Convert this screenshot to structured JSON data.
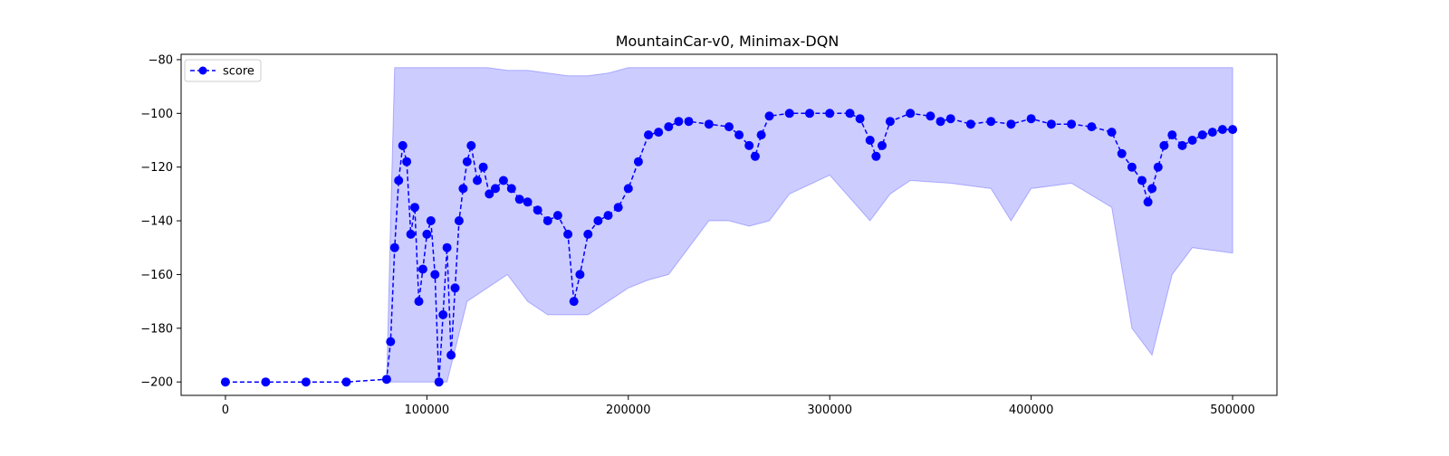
{
  "chart_data": {
    "type": "line",
    "title": "MountainCar-v0, Minimax-DQN",
    "xlabel": "",
    "ylabel": "",
    "xlim": [
      -22000,
      522000
    ],
    "ylim": [
      -205,
      -78
    ],
    "xticks": [
      {
        "value": 0,
        "label": "0"
      },
      {
        "value": 100000,
        "label": "100000"
      },
      {
        "value": 200000,
        "label": "200000"
      },
      {
        "value": 300000,
        "label": "300000"
      },
      {
        "value": 400000,
        "label": "400000"
      },
      {
        "value": 500000,
        "label": "500000"
      }
    ],
    "yticks": [
      {
        "value": -80,
        "label": "−80"
      },
      {
        "value": -100,
        "label": "−100"
      },
      {
        "value": -120,
        "label": "−120"
      },
      {
        "value": -140,
        "label": "−140"
      },
      {
        "value": -160,
        "label": "−160"
      },
      {
        "value": -180,
        "label": "−180"
      },
      {
        "value": -200,
        "label": "−200"
      }
    ],
    "legend": {
      "position": "top-left",
      "entries": [
        {
          "label": "score",
          "color": "#0000ff",
          "marker": "circle",
          "linestyle": "dashed"
        }
      ]
    },
    "grid": false,
    "series": [
      {
        "name": "score",
        "color": "#0000ff",
        "marker": "circle",
        "linestyle": "dashed",
        "x": [
          0,
          20000,
          40000,
          60000,
          80000,
          82000,
          84000,
          86000,
          88000,
          90000,
          92000,
          94000,
          96000,
          98000,
          100000,
          102000,
          104000,
          106000,
          108000,
          110000,
          112000,
          114000,
          116000,
          118000,
          120000,
          122000,
          125000,
          128000,
          131000,
          134000,
          138000,
          142000,
          146000,
          150000,
          155000,
          160000,
          165000,
          170000,
          173000,
          176000,
          180000,
          185000,
          190000,
          195000,
          200000,
          205000,
          210000,
          215000,
          220000,
          225000,
          230000,
          240000,
          250000,
          255000,
          260000,
          263000,
          266000,
          270000,
          280000,
          290000,
          300000,
          310000,
          315000,
          320000,
          323000,
          326000,
          330000,
          340000,
          350000,
          355000,
          360000,
          370000,
          380000,
          390000,
          400000,
          410000,
          420000,
          430000,
          440000,
          445000,
          450000,
          455000,
          458000,
          460000,
          463000,
          466000,
          470000,
          475000,
          480000,
          485000,
          490000,
          495000,
          500000
        ],
        "y": [
          -200,
          -200,
          -200,
          -200,
          -199,
          -185,
          -150,
          -125,
          -112,
          -118,
          -145,
          -135,
          -170,
          -158,
          -145,
          -140,
          -160,
          -200,
          -175,
          -150,
          -190,
          -165,
          -140,
          -128,
          -118,
          -112,
          -125,
          -120,
          -130,
          -128,
          -125,
          -128,
          -132,
          -133,
          -136,
          -140,
          -138,
          -145,
          -170,
          -160,
          -145,
          -140,
          -138,
          -135,
          -128,
          -118,
          -108,
          -107,
          -105,
          -103,
          -103,
          -104,
          -105,
          -108,
          -112,
          -116,
          -108,
          -101,
          -100,
          -100,
          -100,
          -100,
          -102,
          -110,
          -116,
          -112,
          -103,
          -100,
          -101,
          -103,
          -102,
          -104,
          -103,
          -104,
          -102,
          -104,
          -104,
          -105,
          -107,
          -115,
          -120,
          -125,
          -133,
          -128,
          -120,
          -112,
          -108,
          -112,
          -110,
          -108,
          -107,
          -106,
          -106
        ]
      }
    ],
    "band": {
      "color": "#0000ff",
      "opacity": 0.2,
      "x": [
        80000,
        82000,
        84000,
        90000,
        100000,
        110000,
        120000,
        130000,
        140000,
        150000,
        160000,
        170000,
        180000,
        190000,
        200000,
        210000,
        220000,
        230000,
        240000,
        250000,
        260000,
        270000,
        280000,
        300000,
        320000,
        330000,
        340000,
        360000,
        380000,
        390000,
        400000,
        420000,
        440000,
        450000,
        460000,
        470000,
        480000,
        500000
      ],
      "upper": [
        -200,
        -140,
        -83,
        -83,
        -83,
        -83,
        -83,
        -83,
        -84,
        -84,
        -85,
        -86,
        -86,
        -85,
        -83,
        -83,
        -83,
        -83,
        -83,
        -83,
        -83,
        -83,
        -83,
        -83,
        -83,
        -83,
        -83,
        -83,
        -83,
        -83,
        -83,
        -83,
        -83,
        -83,
        -83,
        -83,
        -83,
        -83
      ],
      "lower": [
        -200,
        -200,
        -200,
        -200,
        -200,
        -200,
        -170,
        -165,
        -160,
        -170,
        -175,
        -175,
        -175,
        -170,
        -165,
        -162,
        -160,
        -150,
        -140,
        -140,
        -142,
        -140,
        -130,
        -123,
        -140,
        -130,
        -125,
        -126,
        -128,
        -140,
        -128,
        -126,
        -135,
        -180,
        -190,
        -160,
        -150,
        -152
      ]
    }
  }
}
